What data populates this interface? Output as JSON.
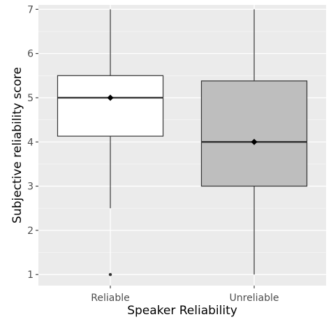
{
  "chart_data": {
    "type": "box",
    "title": "",
    "xlabel": "Speaker Reliability",
    "ylabel": "Subjective reliability score",
    "categories": [
      "Reliable",
      "Unreliable"
    ],
    "ylim": [
      0.75,
      7.1
    ],
    "y_ticks": [
      1,
      2,
      3,
      4,
      5,
      6,
      7
    ],
    "grid": true,
    "legend": "none",
    "boxes": [
      {
        "category": "Reliable",
        "whisker_low": 2.5,
        "q1": 4.13,
        "median": 5,
        "q3": 5.5,
        "whisker_high": 7,
        "mean": 5,
        "outliers": [
          1
        ],
        "fill": "#ffffff"
      },
      {
        "category": "Unreliable",
        "whisker_low": 1,
        "q1": 3,
        "median": 4,
        "q3": 5.38,
        "whisker_high": 7,
        "mean": 4,
        "outliers": [],
        "fill": "#bebebe"
      }
    ],
    "colors": {
      "panel_background": "#ebebeb",
      "grid_major": "#ffffff",
      "box_stroke": "#333333",
      "mean_marker": "#000000",
      "tick_text": "#4d4d4d"
    }
  }
}
